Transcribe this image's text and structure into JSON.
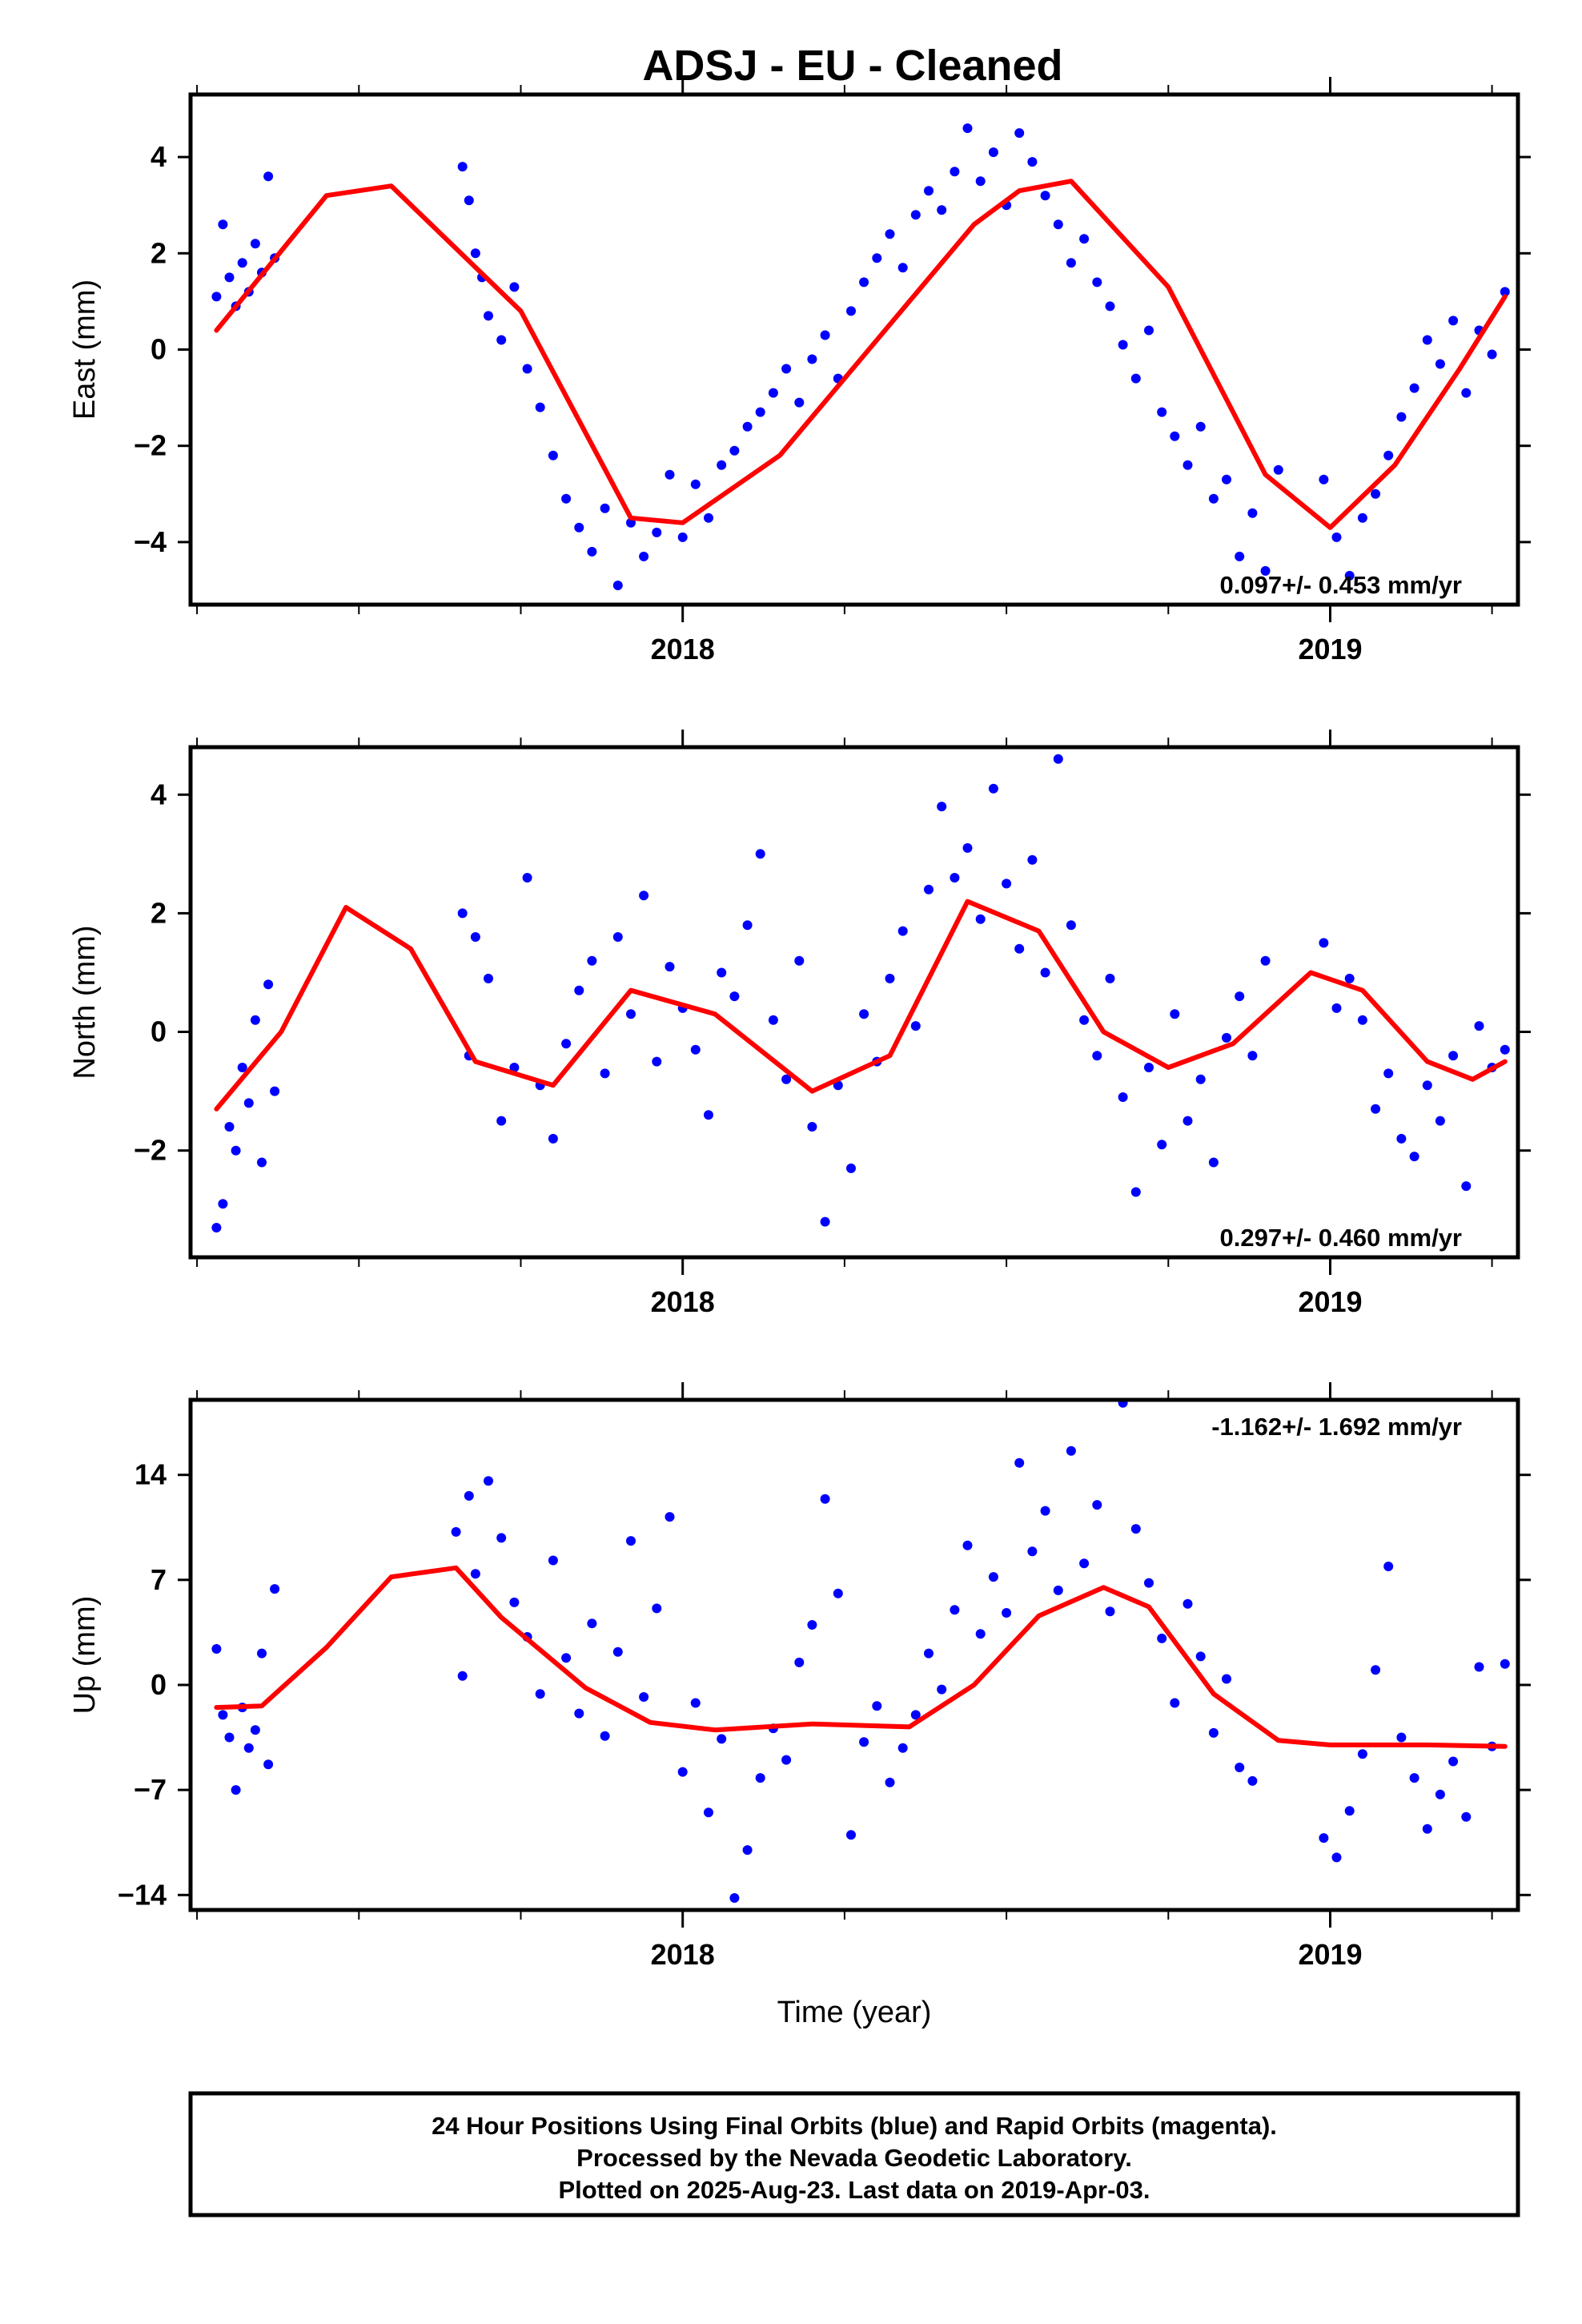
{
  "title": "ADSJ  - EU - Cleaned",
  "footer": {
    "line1": "24 Hour Positions Using Final Orbits (blue) and Rapid Orbits (magenta).",
    "line2": "Processed by the Nevada Geodetic Laboratory.",
    "line3": "Plotted on 2025-Aug-23. Last data on 2019-Apr-03."
  },
  "colors": {
    "points": "#0000ff",
    "fit": "#ff0000",
    "frame": "#000000"
  },
  "chart_data": [
    {
      "type": "scatter",
      "name": "east",
      "ylabel": "East (mm)",
      "xlabel": "",
      "xlim": [
        2017.24,
        2019.29
      ],
      "ylim": [
        -5.3,
        5.3
      ],
      "xticks": [
        2018,
        2019
      ],
      "xtick_labels": [
        "2018",
        "2019"
      ],
      "yticks": [
        -4,
        -2,
        0,
        2,
        4
      ],
      "ytick_labels": [
        "−4",
        "−2",
        "0",
        "2",
        "4"
      ],
      "rate_label": "0.097+/- 0.453 mm/yr",
      "rate_position": "bottom-right",
      "fit": {
        "x": [
          2017.28,
          2017.45,
          2017.55,
          2017.75,
          2017.92,
          2018.0,
          2018.15,
          2018.3,
          2018.45,
          2018.52,
          2018.6,
          2018.75,
          2018.9,
          2019.0,
          2019.1,
          2019.2,
          2019.27
        ],
        "y": [
          0.4,
          3.2,
          3.4,
          0.8,
          -3.5,
          -3.6,
          -2.2,
          0.2,
          2.6,
          3.3,
          3.5,
          1.3,
          -2.6,
          -3.7,
          -2.4,
          -0.4,
          1.1
        ]
      },
      "points": {
        "x": [
          2017.28,
          2017.29,
          2017.3,
          2017.31,
          2017.32,
          2017.33,
          2017.34,
          2017.35,
          2017.36,
          2017.37,
          2017.66,
          2017.67,
          2017.68,
          2017.69,
          2017.7,
          2017.72,
          2017.74,
          2017.76,
          2017.78,
          2017.8,
          2017.82,
          2017.84,
          2017.86,
          2017.88,
          2017.9,
          2017.92,
          2017.94,
          2017.96,
          2017.98,
          2018.0,
          2018.02,
          2018.04,
          2018.06,
          2018.08,
          2018.1,
          2018.12,
          2018.14,
          2018.16,
          2018.18,
          2018.2,
          2018.22,
          2018.24,
          2018.26,
          2018.28,
          2018.3,
          2018.32,
          2018.34,
          2018.36,
          2018.38,
          2018.4,
          2018.42,
          2018.44,
          2018.46,
          2018.48,
          2018.5,
          2018.52,
          2018.54,
          2018.56,
          2018.58,
          2018.6,
          2018.62,
          2018.64,
          2018.66,
          2018.68,
          2018.7,
          2018.72,
          2018.74,
          2018.76,
          2018.78,
          2018.8,
          2018.82,
          2018.84,
          2018.86,
          2018.88,
          2018.9,
          2018.92,
          2018.99,
          2019.01,
          2019.03,
          2019.05,
          2019.07,
          2019.09,
          2019.11,
          2019.13,
          2019.15,
          2019.17,
          2019.19,
          2019.21,
          2019.23,
          2019.25,
          2019.27
        ],
        "y": [
          1.1,
          2.6,
          1.5,
          0.9,
          1.8,
          1.2,
          2.2,
          1.6,
          3.6,
          1.9,
          3.8,
          3.1,
          2.0,
          1.5,
          0.7,
          0.2,
          1.3,
          -0.4,
          -1.2,
          -2.2,
          -3.1,
          -3.7,
          -4.2,
          -3.3,
          -4.9,
          -3.6,
          -4.3,
          -3.8,
          -2.6,
          -3.9,
          -2.8,
          -3.5,
          -2.4,
          -2.1,
          -1.6,
          -1.3,
          -0.9,
          -0.4,
          -1.1,
          -0.2,
          0.3,
          -0.6,
          0.8,
          1.4,
          1.9,
          2.4,
          1.7,
          2.8,
          3.3,
          2.9,
          3.7,
          4.6,
          3.5,
          4.1,
          3.0,
          4.5,
          3.9,
          3.2,
          2.6,
          1.8,
          2.3,
          1.4,
          0.9,
          0.1,
          -0.6,
          0.4,
          -1.3,
          -1.8,
          -2.4,
          -1.6,
          -3.1,
          -2.7,
          -4.3,
          -3.4,
          -4.6,
          -2.5,
          -2.7,
          -3.9,
          -4.7,
          -3.5,
          -3.0,
          -2.2,
          -1.4,
          -0.8,
          0.2,
          -0.3,
          0.6,
          -0.9,
          0.4,
          -0.1,
          1.2
        ]
      }
    },
    {
      "type": "scatter",
      "name": "north",
      "ylabel": "North (mm)",
      "xlabel": "",
      "xlim": [
        2017.24,
        2019.29
      ],
      "ylim": [
        -3.8,
        4.8
      ],
      "xticks": [
        2018,
        2019
      ],
      "xtick_labels": [
        "2018",
        "2019"
      ],
      "yticks": [
        -2,
        0,
        2,
        4
      ],
      "ytick_labels": [
        "−2",
        "0",
        "2",
        "4"
      ],
      "rate_label": "0.297+/- 0.460 mm/yr",
      "rate_position": "bottom-right",
      "fit": {
        "x": [
          2017.28,
          2017.38,
          2017.48,
          2017.58,
          2017.68,
          2017.8,
          2017.92,
          2018.05,
          2018.2,
          2018.32,
          2018.44,
          2018.55,
          2018.65,
          2018.75,
          2018.85,
          2018.97,
          2019.05,
          2019.15,
          2019.22,
          2019.27
        ],
        "y": [
          -1.3,
          0.0,
          2.1,
          1.4,
          -0.5,
          -0.9,
          0.7,
          0.3,
          -1.0,
          -0.4,
          2.2,
          1.7,
          0.0,
          -0.6,
          -0.2,
          1.0,
          0.7,
          -0.5,
          -0.8,
          -0.5
        ]
      },
      "points": {
        "x": [
          2017.28,
          2017.29,
          2017.3,
          2017.31,
          2017.32,
          2017.33,
          2017.34,
          2017.35,
          2017.36,
          2017.37,
          2017.66,
          2017.67,
          2017.68,
          2017.7,
          2017.72,
          2017.74,
          2017.76,
          2017.78,
          2017.8,
          2017.82,
          2017.84,
          2017.86,
          2017.88,
          2017.9,
          2017.92,
          2017.94,
          2017.96,
          2017.98,
          2018.0,
          2018.02,
          2018.04,
          2018.06,
          2018.08,
          2018.1,
          2018.12,
          2018.14,
          2018.16,
          2018.18,
          2018.2,
          2018.22,
          2018.24,
          2018.26,
          2018.28,
          2018.3,
          2018.32,
          2018.34,
          2018.36,
          2018.38,
          2018.4,
          2018.42,
          2018.44,
          2018.46,
          2018.48,
          2018.5,
          2018.52,
          2018.54,
          2018.56,
          2018.58,
          2018.6,
          2018.62,
          2018.64,
          2018.66,
          2018.68,
          2018.7,
          2018.72,
          2018.74,
          2018.76,
          2018.78,
          2018.8,
          2018.82,
          2018.84,
          2018.86,
          2018.88,
          2018.9,
          2018.99,
          2019.01,
          2019.03,
          2019.05,
          2019.07,
          2019.09,
          2019.11,
          2019.13,
          2019.15,
          2019.17,
          2019.19,
          2019.21,
          2019.23,
          2019.25,
          2019.27
        ],
        "y": [
          -3.3,
          -2.9,
          -1.6,
          -2.0,
          -0.6,
          -1.2,
          0.2,
          -2.2,
          0.8,
          -1.0,
          2.0,
          -0.4,
          1.6,
          0.9,
          -1.5,
          -0.6,
          2.6,
          -0.9,
          -1.8,
          -0.2,
          0.7,
          1.2,
          -0.7,
          1.6,
          0.3,
          2.3,
          -0.5,
          1.1,
          0.4,
          -0.3,
          -1.4,
          1.0,
          0.6,
          1.8,
          3.0,
          0.2,
          -0.8,
          1.2,
          -1.6,
          -3.2,
          -0.9,
          -2.3,
          0.3,
          -0.5,
          0.9,
          1.7,
          0.1,
          2.4,
          3.8,
          2.6,
          3.1,
          1.9,
          4.1,
          2.5,
          1.4,
          2.9,
          1.0,
          4.6,
          1.8,
          0.2,
          -0.4,
          0.9,
          -1.1,
          -2.7,
          -0.6,
          -1.9,
          0.3,
          -1.5,
          -0.8,
          -2.2,
          -0.1,
          0.6,
          -0.4,
          1.2,
          1.5,
          0.4,
          0.9,
          0.2,
          -1.3,
          -0.7,
          -1.8,
          -2.1,
          -0.9,
          -1.5,
          -0.4,
          -2.6,
          0.1,
          -0.6,
          -0.3
        ]
      }
    },
    {
      "type": "scatter",
      "name": "up",
      "ylabel": "Up (mm)",
      "xlabel": "Time (year)",
      "xlim": [
        2017.24,
        2019.29
      ],
      "ylim": [
        -15,
        19
      ],
      "xticks": [
        2018,
        2019
      ],
      "xtick_labels": [
        "2018",
        "2019"
      ],
      "yticks": [
        -14,
        -7,
        0,
        7,
        14
      ],
      "ytick_labels": [
        "−14",
        "−7",
        "0",
        "7",
        "14"
      ],
      "rate_label": "-1.162+/- 1.692 mm/yr",
      "rate_position": "top-right",
      "fit": {
        "x": [
          2017.28,
          2017.35,
          2017.45,
          2017.55,
          2017.65,
          2017.72,
          2017.85,
          2017.95,
          2018.05,
          2018.2,
          2018.35,
          2018.45,
          2018.55,
          2018.65,
          2018.72,
          2018.82,
          2018.92,
          2019.0,
          2019.15,
          2019.27
        ],
        "y": [
          -1.5,
          -1.4,
          2.5,
          7.2,
          7.8,
          4.5,
          -0.2,
          -2.5,
          -3.0,
          -2.6,
          -2.8,
          0.0,
          4.6,
          6.5,
          5.2,
          -0.6,
          -3.7,
          -4.0,
          -4.0,
          -4.1
        ]
      },
      "points": {
        "x": [
          2017.28,
          2017.29,
          2017.3,
          2017.31,
          2017.32,
          2017.33,
          2017.34,
          2017.35,
          2017.36,
          2017.37,
          2017.65,
          2017.66,
          2017.67,
          2017.68,
          2017.7,
          2017.72,
          2017.74,
          2017.76,
          2017.78,
          2017.8,
          2017.82,
          2017.84,
          2017.86,
          2017.88,
          2017.9,
          2017.92,
          2017.94,
          2017.96,
          2017.98,
          2018.0,
          2018.02,
          2018.04,
          2018.06,
          2018.08,
          2018.1,
          2018.12,
          2018.14,
          2018.16,
          2018.18,
          2018.2,
          2018.22,
          2018.24,
          2018.26,
          2018.28,
          2018.3,
          2018.32,
          2018.34,
          2018.36,
          2018.38,
          2018.4,
          2018.42,
          2018.44,
          2018.46,
          2018.48,
          2018.5,
          2018.52,
          2018.54,
          2018.56,
          2018.58,
          2018.6,
          2018.62,
          2018.64,
          2018.66,
          2018.68,
          2018.7,
          2018.72,
          2018.74,
          2018.76,
          2018.78,
          2018.8,
          2018.82,
          2018.84,
          2018.86,
          2018.88,
          2018.99,
          2019.01,
          2019.03,
          2019.05,
          2019.07,
          2019.09,
          2019.11,
          2019.13,
          2019.15,
          2019.17,
          2019.19,
          2019.21,
          2019.23,
          2019.25,
          2019.27
        ],
        "y": [
          2.4,
          -2.0,
          -3.5,
          -7.0,
          -1.5,
          -4.2,
          -3.0,
          2.1,
          -5.3,
          6.4,
          10.2,
          0.6,
          12.6,
          7.4,
          13.6,
          9.8,
          5.5,
          3.2,
          -0.6,
          8.3,
          1.8,
          -1.9,
          4.1,
          -3.4,
          2.2,
          9.6,
          -0.8,
          5.1,
          11.2,
          -5.8,
          -1.2,
          -8.5,
          -3.6,
          -14.2,
          -11.0,
          -6.2,
          -2.9,
          -5.0,
          1.5,
          4.0,
          12.4,
          6.1,
          -10.0,
          -3.8,
          -1.4,
          -6.5,
          -4.2,
          -2.0,
          2.1,
          -0.3,
          5.0,
          9.3,
          3.4,
          7.2,
          4.8,
          14.8,
          8.9,
          11.6,
          6.3,
          15.6,
          8.1,
          12.0,
          4.9,
          18.8,
          10.4,
          6.8,
          3.1,
          -1.2,
          5.4,
          1.9,
          -3.2,
          0.4,
          -5.5,
          -6.4,
          -10.2,
          -11.5,
          -8.4,
          -4.6,
          1.0,
          7.9,
          -3.5,
          -6.2,
          -9.6,
          -7.3,
          -5.1,
          -8.8,
          1.2,
          -4.1,
          1.4
        ]
      }
    }
  ]
}
